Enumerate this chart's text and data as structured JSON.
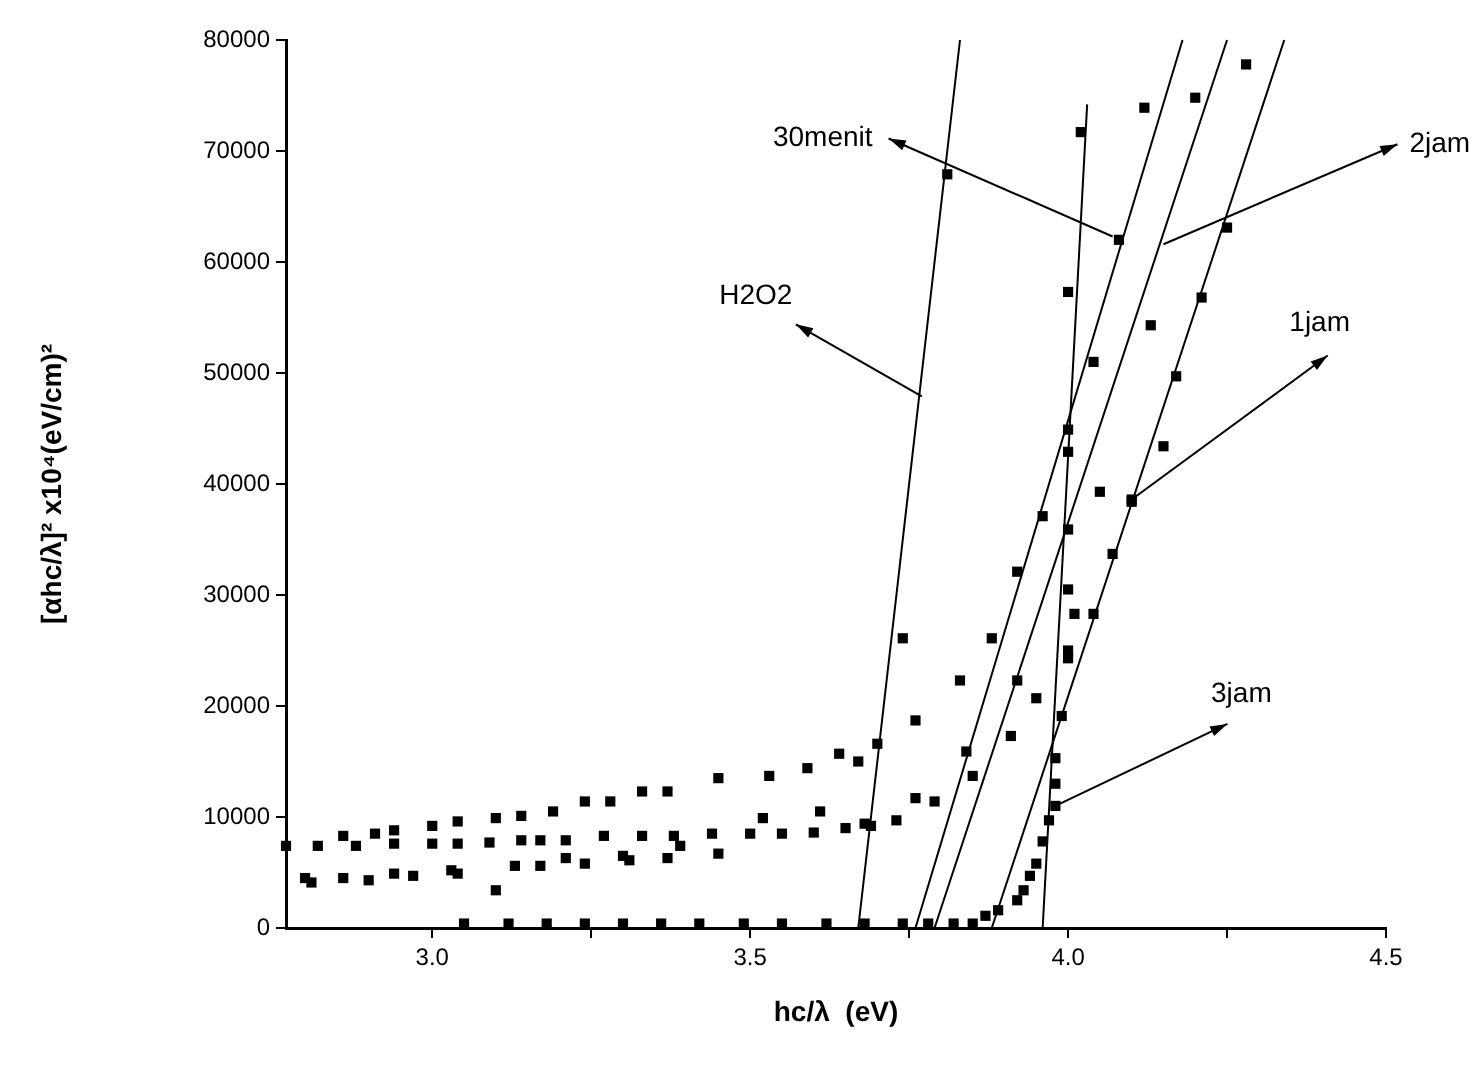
{
  "chart_data": {
    "type": "scatter",
    "xlabel": "hc/λ  (eV)",
    "ylabel": "[αhc/λ]² x10⁴(eV/cm)²",
    "xlim": [
      2.77,
      4.5
    ],
    "xticks": [
      {
        "value": 3,
        "label": "3.0"
      },
      {
        "value": 3.25,
        "label": null
      },
      {
        "value": 3.5,
        "label": "3.5"
      },
      {
        "value": 3.75,
        "label": null
      },
      {
        "value": 4,
        "label": "4.0"
      },
      {
        "value": 4.25,
        "label": null
      },
      {
        "value": 4.5,
        "label": "4.5"
      }
    ],
    "ylim": [
      0,
      80000
    ],
    "yticks": [
      0,
      10000,
      20000,
      30000,
      40000,
      50000,
      60000,
      70000,
      80000
    ],
    "grid": false,
    "legend": false,
    "series": [
      {
        "color": "#000000",
        "marker": "square",
        "x": [
          2.77,
          2.82,
          2.86,
          2.88,
          2.91,
          2.94,
          2.94,
          3.0,
          3.0,
          3.04,
          3.04,
          3.1,
          3.09,
          3.14,
          3.14,
          3.17,
          3.19,
          3.21,
          3.24,
          3.28,
          3.27,
          3.33,
          3.37,
          3.33,
          3.38,
          3.39,
          3.45,
          3.44,
          3.5,
          3.53,
          3.52,
          3.55,
          2.8,
          2.81,
          2.86,
          2.9,
          2.94,
          2.97,
          3.03,
          3.04,
          3.1,
          3.13,
          3.17,
          3.21,
          3.24,
          3.3,
          3.31,
          3.37,
          3.45,
          3.05,
          3.12,
          3.18,
          3.24,
          3.3,
          3.36,
          3.42,
          3.49,
          3.55,
          3.62,
          3.68,
          3.74,
          3.78,
          3.82,
          3.85,
          3.87,
          3.89,
          3.92,
          3.93,
          3.94,
          3.95,
          3.96,
          3.97,
          3.98,
          3.98,
          3.98,
          3.99,
          4.0,
          4.0,
          4.01,
          4.04,
          4.0,
          4.0,
          4.07,
          4.1,
          4.28,
          4.2,
          4.12,
          4.02,
          4.08,
          4.25,
          4.0,
          4.21,
          4.13,
          4.04,
          4.17,
          4.0,
          4.0,
          4.15,
          4.05,
          4.1,
          3.96,
          3.92,
          3.74,
          3.88,
          3.83,
          3.92,
          3.95,
          3.76,
          3.91,
          3.84,
          3.85,
          3.7,
          3.64,
          3.67,
          3.59,
          3.76,
          3.79,
          3.61,
          3.73,
          3.68,
          3.69,
          3.65,
          3.6,
          3.81
        ],
        "values": [
          7400,
          7400,
          8300,
          7400,
          8500,
          7600,
          8800,
          9200,
          7600,
          9600,
          7600,
          9900,
          7700,
          10100,
          7900,
          7900,
          10500,
          7900,
          11400,
          11400,
          8300,
          12300,
          12300,
          8300,
          8300,
          7400,
          13500,
          8500,
          8500,
          13700,
          9900,
          8500,
          4500,
          4100,
          4500,
          4300,
          4900,
          4700,
          5200,
          4900,
          3400,
          5600,
          5600,
          6300,
          5800,
          6500,
          6100,
          6300,
          6700,
          400,
          400,
          400,
          400,
          400,
          400,
          400,
          400,
          400,
          400,
          400,
          400,
          400,
          400,
          400,
          1100,
          1600,
          2500,
          3400,
          4700,
          5800,
          7800,
          9700,
          11000,
          13000,
          15300,
          19100,
          24300,
          25000,
          28300,
          28300,
          30500,
          35900,
          33700,
          38400,
          77800,
          74800,
          73900,
          71700,
          62000,
          63100,
          57300,
          56800,
          54300,
          51000,
          49700,
          44900,
          42900,
          43400,
          39300,
          38600,
          37100,
          32100,
          26100,
          26100,
          22300,
          22300,
          20700,
          18700,
          17300,
          15900,
          13700,
          16600,
          15700,
          15000,
          14400,
          11700,
          11400,
          10500,
          9700,
          9400,
          9200,
          9000,
          8600,
          67900
        ]
      },
      {
        "type": "line",
        "color": "#000000",
        "marker": "none",
        "x": [
          3.67,
          3.83
        ],
        "values": [
          0,
          80000
        ]
      },
      {
        "type": "line",
        "color": "#000000",
        "marker": "none",
        "x": [
          3.76,
          4.18
        ],
        "values": [
          0,
          80000
        ]
      },
      {
        "type": "line",
        "color": "#000000",
        "marker": "none",
        "x": [
          3.79,
          4.25
        ],
        "values": [
          0,
          80000
        ]
      },
      {
        "type": "line",
        "color": "#000000",
        "marker": "none",
        "x": [
          3.88,
          4.34
        ],
        "values": [
          0,
          80000
        ]
      },
      {
        "type": "line",
        "color": "#000000",
        "marker": "none",
        "x": [
          3.96,
          4.03
        ],
        "values": [
          0,
          74200
        ]
      }
    ],
    "annotations": [
      {
        "text": "30menit",
        "x": 4.07,
        "y": 62300
      },
      {
        "text": "2jam",
        "x": 4.15,
        "y": 61600
      },
      {
        "text": "H2O2",
        "x": 3.77,
        "y": 47900
      },
      {
        "text": "1jam",
        "x": 4.1,
        "y": 38600
      },
      {
        "text": "3jam",
        "x": 3.98,
        "y": 11000
      }
    ]
  }
}
